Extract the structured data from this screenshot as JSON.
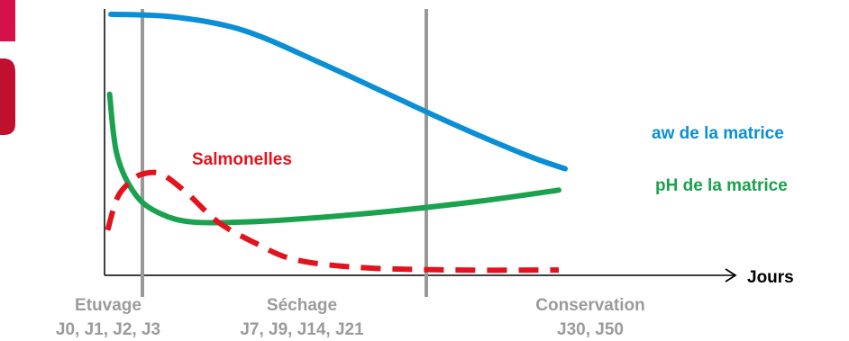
{
  "chart_data": {
    "type": "line",
    "title": "",
    "xlabel": "Jours",
    "ylabel": "",
    "xlim": [
      0,
      100
    ],
    "ylim": [
      0,
      100
    ],
    "grid": false,
    "series": [
      {
        "name": "aw de la matrice",
        "color": "#0a8fd6",
        "style": "solid",
        "points": [
          [
            1,
            98
          ],
          [
            11,
            97
          ],
          [
            22,
            92
          ],
          [
            34,
            80
          ],
          [
            45,
            68
          ],
          [
            56,
            56
          ],
          [
            67,
            45
          ],
          [
            73,
            40
          ]
        ]
      },
      {
        "name": "pH de la matrice",
        "color": "#1aa24e",
        "style": "solid",
        "points": [
          [
            0.8,
            68
          ],
          [
            2,
            45
          ],
          [
            5,
            30
          ],
          [
            9,
            23
          ],
          [
            14,
            20
          ],
          [
            22,
            20
          ],
          [
            30,
            21
          ],
          [
            45,
            24
          ],
          [
            60,
            28
          ],
          [
            72,
            32
          ]
        ]
      },
      {
        "name": "Salmonelles",
        "color": "#e3121c",
        "style": "dashed",
        "points": [
          [
            0.5,
            17
          ],
          [
            2,
            29
          ],
          [
            4,
            35
          ],
          [
            6,
            38
          ],
          [
            9,
            38
          ],
          [
            13,
            31
          ],
          [
            18,
            20
          ],
          [
            24,
            12
          ],
          [
            30,
            6
          ],
          [
            40,
            3
          ],
          [
            55,
            2
          ],
          [
            72,
            2
          ]
        ]
      }
    ],
    "phase_markers": [
      6,
      51
    ],
    "phases": [
      {
        "name": "Etuvage",
        "days": "J0, J1, J2, J3"
      },
      {
        "name": "Séchage",
        "days": "J7, J9, J14, J21"
      },
      {
        "name": "Conservation",
        "days": "J30, J50"
      }
    ]
  }
}
